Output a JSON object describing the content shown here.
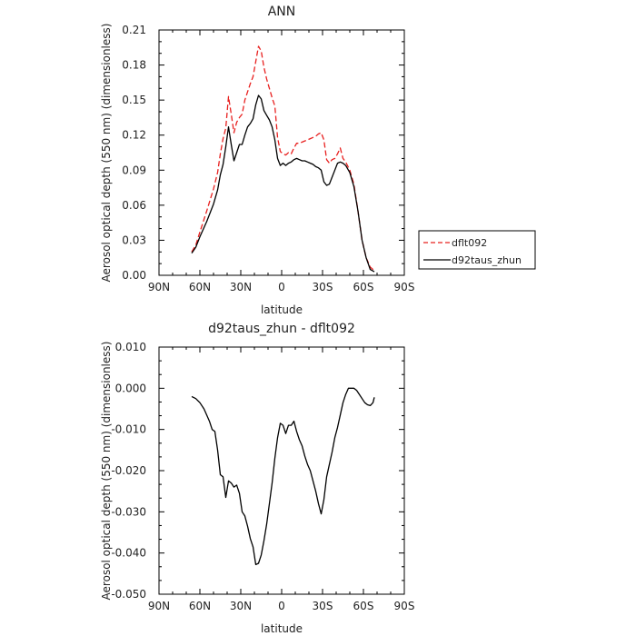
{
  "chart_data": [
    {
      "type": "line",
      "title": "ANN",
      "xlabel": "latitude",
      "ylabel": "Aerosol optical depth (550 nm) (dimensionless)",
      "xlim": [
        90,
        -90
      ],
      "ylim": [
        0,
        0.21
      ],
      "xticks": [
        90,
        60,
        30,
        0,
        -30,
        -60,
        -90
      ],
      "xtick_labels": [
        "90N",
        "60N",
        "30N",
        "0",
        "30S",
        "60S",
        "90S"
      ],
      "yticks": [
        0,
        0.03,
        0.06,
        0.09,
        0.12,
        0.15,
        0.18,
        0.21
      ],
      "ytick_labels": [
        "0.00",
        "0.03",
        "0.06",
        "0.09",
        "0.12",
        "0.15",
        "0.18",
        "0.21"
      ],
      "legend_position": "right",
      "series": [
        {
          "name": "dflt092",
          "color": "#e8201f",
          "dash": "dashed",
          "x": [
            66,
            63,
            60,
            55,
            50,
            47,
            45,
            43,
            41,
            39,
            37,
            35,
            33,
            31,
            29,
            27,
            25,
            23,
            21,
            19,
            17,
            15,
            13,
            11,
            9,
            7,
            5,
            3,
            1,
            -1,
            -3,
            -5,
            -7,
            -9,
            -11,
            -13,
            -15,
            -17,
            -19,
            -21,
            -23,
            -25,
            -27,
            -29,
            -31,
            -33,
            -35,
            -37,
            -39,
            -41,
            -43,
            -45,
            -47,
            -50,
            -53,
            -56,
            -59,
            -62,
            -65,
            -68
          ],
          "y": [
            0.02,
            0.026,
            0.037,
            0.055,
            0.074,
            0.088,
            0.104,
            0.117,
            0.126,
            0.153,
            0.138,
            0.122,
            0.131,
            0.135,
            0.138,
            0.15,
            0.157,
            0.164,
            0.17,
            0.183,
            0.196,
            0.192,
            0.178,
            0.168,
            0.16,
            0.152,
            0.145,
            0.118,
            0.106,
            0.104,
            0.103,
            0.105,
            0.104,
            0.109,
            0.113,
            0.113,
            0.114,
            0.115,
            0.116,
            0.117,
            0.118,
            0.119,
            0.121,
            0.122,
            0.116,
            0.099,
            0.096,
            0.099,
            0.1,
            0.104,
            0.109,
            0.1,
            0.097,
            0.09,
            0.078,
            0.055,
            0.03,
            0.015,
            0.007,
            0.004
          ]
        },
        {
          "name": "d92taus_zhun",
          "color": "#000000",
          "dash": "solid",
          "x": [
            66,
            63,
            60,
            55,
            50,
            47,
            45,
            43,
            41,
            39,
            37,
            35,
            33,
            31,
            29,
            27,
            25,
            23,
            21,
            19,
            17,
            15,
            13,
            11,
            9,
            7,
            5,
            3,
            1,
            -1,
            -3,
            -5,
            -7,
            -9,
            -11,
            -13,
            -15,
            -17,
            -19,
            -21,
            -23,
            -25,
            -27,
            -29,
            -31,
            -33,
            -35,
            -37,
            -39,
            -41,
            -43,
            -45,
            -47,
            -50,
            -53,
            -56,
            -59,
            -62,
            -65,
            -68
          ],
          "y": [
            0.019,
            0.024,
            0.033,
            0.046,
            0.061,
            0.073,
            0.086,
            0.095,
            0.11,
            0.127,
            0.112,
            0.098,
            0.105,
            0.112,
            0.112,
            0.12,
            0.127,
            0.13,
            0.134,
            0.146,
            0.154,
            0.151,
            0.141,
            0.137,
            0.133,
            0.127,
            0.116,
            0.1,
            0.094,
            0.096,
            0.094,
            0.096,
            0.097,
            0.099,
            0.1,
            0.099,
            0.098,
            0.098,
            0.097,
            0.096,
            0.095,
            0.093,
            0.092,
            0.09,
            0.08,
            0.077,
            0.078,
            0.084,
            0.09,
            0.096,
            0.097,
            0.096,
            0.094,
            0.088,
            0.076,
            0.055,
            0.03,
            0.015,
            0.005,
            0.003
          ]
        }
      ]
    },
    {
      "type": "line",
      "title": "d92taus_zhun - dflt092",
      "xlabel": "latitude",
      "ylabel": "Aerosol optical depth (550 nm) (dimensionless)",
      "xlim": [
        90,
        -90
      ],
      "ylim": [
        -0.05,
        0.01
      ],
      "xticks": [
        90,
        60,
        30,
        0,
        -30,
        -60,
        -90
      ],
      "xtick_labels": [
        "90N",
        "60N",
        "30N",
        "0",
        "30S",
        "60S",
        "90S"
      ],
      "yticks": [
        -0.05,
        -0.04,
        -0.03,
        -0.02,
        -0.01,
        0.0,
        0.01
      ],
      "ytick_labels": [
        "-0.050",
        "-0.040",
        "-0.030",
        "-0.020",
        "-0.010",
        "0.000",
        "0.010"
      ],
      "series": [
        {
          "color": "#000000",
          "dash": "solid",
          "x": [
            66,
            63,
            60,
            57,
            55,
            53,
            51,
            49,
            47,
            45,
            43,
            41,
            39,
            37,
            35,
            33,
            31,
            29,
            27,
            25,
            23,
            21,
            19,
            17,
            15,
            13,
            11,
            9,
            7,
            5,
            3,
            1,
            -1,
            -3,
            -5,
            -7,
            -9,
            -11,
            -13,
            -15,
            -17,
            -19,
            -21,
            -23,
            -25,
            -27,
            -29,
            -31,
            -33,
            -35,
            -37,
            -39,
            -41,
            -43,
            -45,
            -47,
            -49,
            -51,
            -53,
            -55,
            -57,
            -59,
            -61,
            -63,
            -65,
            -67,
            -68
          ],
          "y": [
            -0.002,
            -0.0025,
            -0.0035,
            -0.005,
            -0.0065,
            -0.008,
            -0.01,
            -0.0105,
            -0.015,
            -0.021,
            -0.0215,
            -0.0265,
            -0.0225,
            -0.023,
            -0.024,
            -0.0235,
            -0.0255,
            -0.03,
            -0.031,
            -0.0335,
            -0.0365,
            -0.0385,
            -0.0428,
            -0.0425,
            -0.0405,
            -0.037,
            -0.033,
            -0.028,
            -0.023,
            -0.017,
            -0.012,
            -0.0085,
            -0.009,
            -0.011,
            -0.009,
            -0.009,
            -0.008,
            -0.0105,
            -0.0125,
            -0.014,
            -0.0165,
            -0.0185,
            -0.02,
            -0.0225,
            -0.025,
            -0.028,
            -0.0305,
            -0.027,
            -0.0215,
            -0.0185,
            -0.0155,
            -0.012,
            -0.0095,
            -0.0065,
            -0.0035,
            -0.0015,
            0.0,
            0.0,
            0.0,
            -0.0005,
            -0.0015,
            -0.0025,
            -0.0035,
            -0.004,
            -0.0042,
            -0.0035,
            -0.0022
          ]
        }
      ]
    }
  ]
}
